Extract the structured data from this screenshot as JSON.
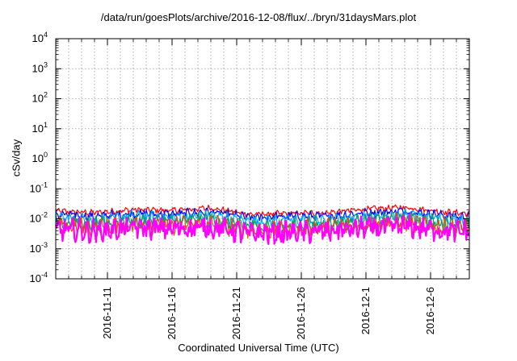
{
  "chart_data": {
    "type": "line",
    "title": "/data/run/goesPlots/archive/2016-12-08/flux/../bryn/31daysMars.plot",
    "xlabel": "Coordinated Universal Time (UTC)",
    "ylabel": "cSv/day",
    "yscale": "log",
    "ylim": [
      0.0001,
      10000
    ],
    "y_ticks": [
      {
        "value": 0.0001,
        "base": "10",
        "exp": "-4"
      },
      {
        "value": 0.001,
        "base": "10",
        "exp": "-3"
      },
      {
        "value": 0.01,
        "base": "10",
        "exp": "-2"
      },
      {
        "value": 0.1,
        "base": "10",
        "exp": "-1"
      },
      {
        "value": 1,
        "base": "10",
        "exp": "0"
      },
      {
        "value": 10,
        "base": "10",
        "exp": "1"
      },
      {
        "value": 100,
        "base": "10",
        "exp": "2"
      },
      {
        "value": 1000,
        "base": "10",
        "exp": "3"
      },
      {
        "value": 10000,
        "base": "10",
        "exp": "4"
      }
    ],
    "xlim": [
      "2016-11-07",
      "2016-12-09"
    ],
    "x_tick_labels": [
      "2016-11-11",
      "2016-11-16",
      "2016-11-21",
      "2016-11-26",
      "2016-12-1",
      "2016-12-6"
    ],
    "x_tick_dates": [
      "2016-11-11",
      "2016-11-16",
      "2016-11-21",
      "2016-11-26",
      "2016-12-01",
      "2016-12-06"
    ],
    "grid": true,
    "legend": "none",
    "series": [
      {
        "color": "#ff0000",
        "x": [
          "2016-11-07",
          "2016-11-10",
          "2016-11-13",
          "2016-11-16",
          "2016-11-19",
          "2016-11-22",
          "2016-11-25",
          "2016-11-28",
          "2016-12-01",
          "2016-12-04",
          "2016-12-07",
          "2016-12-09"
        ],
        "values": [
          0.018,
          0.016,
          0.02,
          0.019,
          0.023,
          0.014,
          0.015,
          0.016,
          0.021,
          0.024,
          0.017,
          0.015
        ]
      },
      {
        "color": "#0000ff",
        "x": [
          "2016-11-07",
          "2016-11-10",
          "2016-11-13",
          "2016-11-16",
          "2016-11-19",
          "2016-11-22",
          "2016-11-25",
          "2016-11-28",
          "2016-12-01",
          "2016-12-04",
          "2016-12-07",
          "2016-12-09"
        ],
        "values": [
          0.014,
          0.012,
          0.015,
          0.014,
          0.017,
          0.011,
          0.012,
          0.012,
          0.016,
          0.018,
          0.013,
          0.011
        ]
      },
      {
        "color": "#00aaee",
        "x": [
          "2016-11-07",
          "2016-11-10",
          "2016-11-13",
          "2016-11-16",
          "2016-11-19",
          "2016-11-22",
          "2016-11-25",
          "2016-11-28",
          "2016-12-01",
          "2016-12-04",
          "2016-12-07",
          "2016-12-09"
        ],
        "values": [
          0.011,
          0.009,
          0.012,
          0.011,
          0.013,
          0.008,
          0.009,
          0.009,
          0.012,
          0.014,
          0.01,
          0.009
        ]
      },
      {
        "color": "#00a060",
        "x": [
          "2016-11-07",
          "2016-11-10",
          "2016-11-13",
          "2016-11-16",
          "2016-11-19",
          "2016-11-22",
          "2016-11-25",
          "2016-11-28",
          "2016-12-01",
          "2016-12-04",
          "2016-12-07",
          "2016-12-09"
        ],
        "values": [
          0.008,
          0.0065,
          0.0085,
          0.008,
          0.0095,
          0.0055,
          0.006,
          0.0065,
          0.0085,
          0.01,
          0.007,
          0.0065
        ]
      },
      {
        "color": "#e05000",
        "x": [
          "2016-11-07",
          "2016-11-10",
          "2016-11-13",
          "2016-11-16",
          "2016-11-19",
          "2016-11-22",
          "2016-11-25",
          "2016-11-28",
          "2016-12-01",
          "2016-12-04",
          "2016-12-07",
          "2016-12-09"
        ],
        "values": [
          0.006,
          0.005,
          0.0065,
          0.006,
          0.007,
          0.0042,
          0.0045,
          0.005,
          0.0065,
          0.0075,
          0.0052,
          0.005
        ]
      },
      {
        "color": "#ff00ff",
        "x": [
          "2016-11-07",
          "2016-11-10",
          "2016-11-13",
          "2016-11-16",
          "2016-11-19",
          "2016-11-22",
          "2016-11-25",
          "2016-11-28",
          "2016-12-01",
          "2016-12-04",
          "2016-12-07",
          "2016-12-09"
        ],
        "values": [
          0.0045,
          0.0038,
          0.005,
          0.0046,
          0.0052,
          0.0032,
          0.0034,
          0.0038,
          0.005,
          0.0055,
          0.004,
          0.0038
        ]
      }
    ]
  }
}
